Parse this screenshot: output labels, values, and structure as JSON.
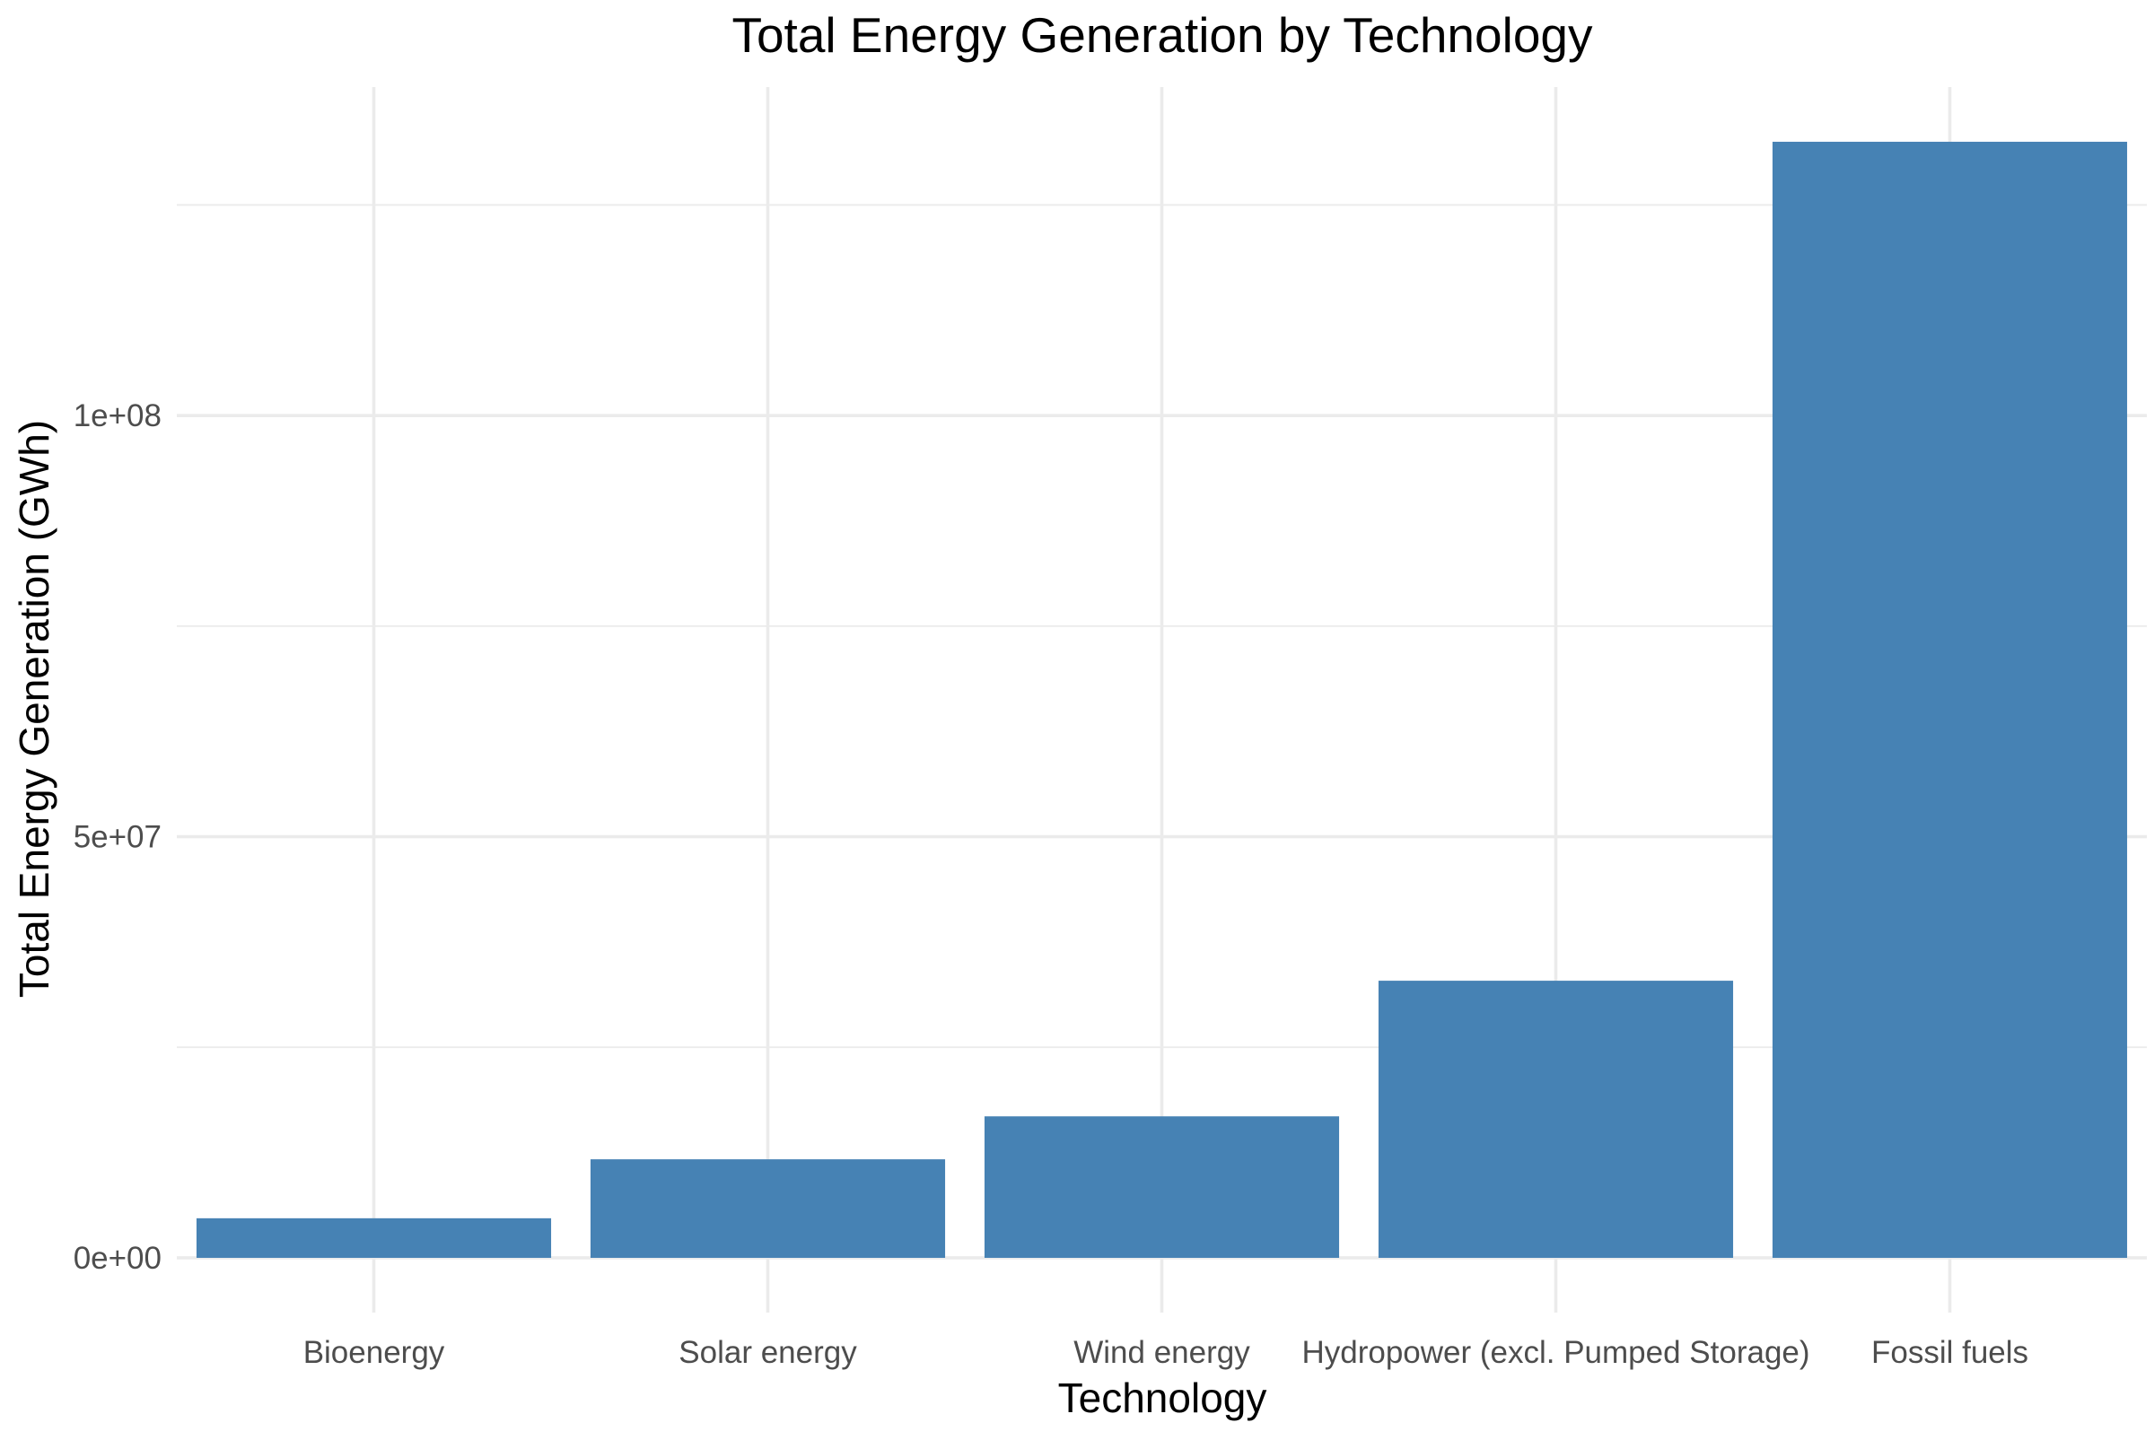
{
  "chart_data": {
    "type": "bar",
    "title": "Total Energy Generation by Technology",
    "xlabel": "Technology",
    "ylabel": "Total Energy Generation (GWh)",
    "categories": [
      "Bioenergy",
      "Solar energy",
      "Wind energy",
      "Hydropower (excl. Pumped Storage)",
      "Fossil fuels"
    ],
    "values": [
      4700000,
      11700000,
      16800000,
      32900000,
      132500000
    ],
    "ylim": [
      -6500000,
      139000000
    ],
    "y_ticks": [
      0,
      50000000,
      100000000
    ],
    "y_tick_labels": [
      "0e+00",
      "5e+07",
      "1e+08"
    ],
    "y_minor_ticks": [
      25000000,
      75000000,
      125000000
    ],
    "grid": true,
    "legend": "none",
    "bar_color": "#4682B4"
  }
}
